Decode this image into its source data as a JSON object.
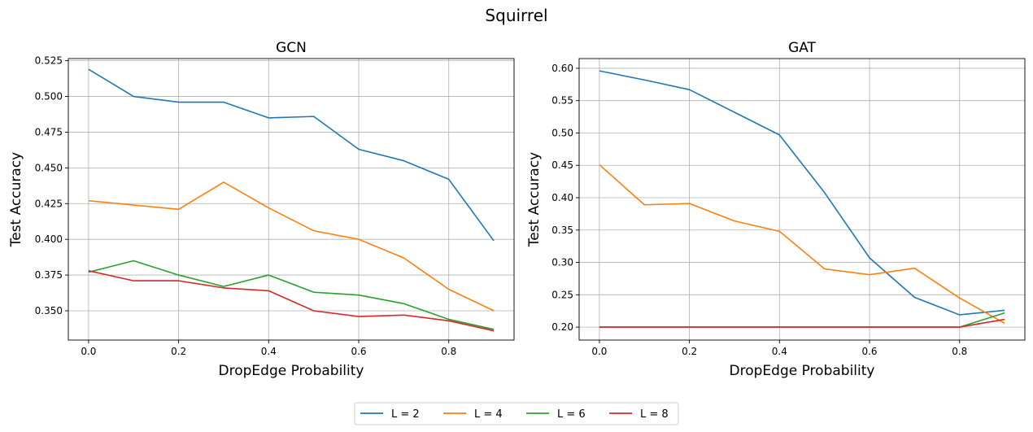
{
  "figure": {
    "suptitle": "Squirrel"
  },
  "chart_data": [
    {
      "type": "line",
      "title": "GCN",
      "xlabel": "DropEdge Probability",
      "ylabel": "Test Accuracy",
      "xlim": [
        -0.045,
        0.945
      ],
      "ylim": [
        0.3295,
        0.5265
      ],
      "xticks": [
        0.0,
        0.2,
        0.4,
        0.6,
        0.8
      ],
      "xtick_labels": [
        "0.0",
        "0.2",
        "0.4",
        "0.6",
        "0.8"
      ],
      "yticks": [
        0.35,
        0.375,
        0.4,
        0.425,
        0.45,
        0.475,
        0.5,
        0.525
      ],
      "ytick_labels": [
        "0.350",
        "0.375",
        "0.400",
        "0.425",
        "0.450",
        "0.475",
        "0.500",
        "0.525"
      ],
      "grid": true,
      "x": [
        0.0,
        0.1,
        0.2,
        0.3,
        0.4,
        0.5,
        0.6,
        0.7,
        0.8,
        0.9
      ],
      "series": [
        {
          "name": "L = 2",
          "color": "#1f77b4",
          "values": [
            0.519,
            0.5,
            0.496,
            0.496,
            0.485,
            0.486,
            0.463,
            0.455,
            0.442,
            0.399
          ]
        },
        {
          "name": "L = 4",
          "color": "#ff7f0e",
          "values": [
            0.427,
            0.424,
            0.421,
            0.44,
            0.422,
            0.406,
            0.4,
            0.387,
            0.365,
            0.35
          ]
        },
        {
          "name": "L = 6",
          "color": "#2ca02c",
          "values": [
            0.377,
            0.385,
            0.375,
            0.367,
            0.375,
            0.363,
            0.361,
            0.355,
            0.344,
            0.337
          ]
        },
        {
          "name": "L = 8",
          "color": "#d62728",
          "values": [
            0.378,
            0.371,
            0.371,
            0.366,
            0.364,
            0.35,
            0.346,
            0.347,
            0.343,
            0.336
          ]
        }
      ]
    },
    {
      "type": "line",
      "title": "GAT",
      "xlabel": "DropEdge Probability",
      "ylabel": "Test Accuracy",
      "xlim": [
        -0.045,
        0.945
      ],
      "ylim": [
        0.18,
        0.615
      ],
      "xticks": [
        0.0,
        0.2,
        0.4,
        0.6,
        0.8
      ],
      "xtick_labels": [
        "0.0",
        "0.2",
        "0.4",
        "0.6",
        "0.8"
      ],
      "yticks": [
        0.2,
        0.25,
        0.3,
        0.35,
        0.4,
        0.45,
        0.5,
        0.55,
        0.6
      ],
      "ytick_labels": [
        "0.20",
        "0.25",
        "0.30",
        "0.35",
        "0.40",
        "0.45",
        "0.50",
        "0.55",
        "0.60"
      ],
      "grid": true,
      "x": [
        0.0,
        0.1,
        0.2,
        0.3,
        0.4,
        0.5,
        0.6,
        0.7,
        0.8,
        0.9
      ],
      "series": [
        {
          "name": "L = 2",
          "color": "#1f77b4",
          "values": [
            0.596,
            0.582,
            0.567,
            0.532,
            0.497,
            0.408,
            0.307,
            0.246,
            0.219,
            0.226
          ]
        },
        {
          "name": "L = 4",
          "color": "#ff7f0e",
          "values": [
            0.451,
            0.389,
            0.391,
            0.364,
            0.348,
            0.29,
            0.281,
            0.291,
            0.245,
            0.206
          ]
        },
        {
          "name": "L = 6",
          "color": "#2ca02c",
          "values": [
            0.2,
            0.2,
            0.2,
            0.2,
            0.2,
            0.2,
            0.2,
            0.2,
            0.2,
            0.222
          ]
        },
        {
          "name": "L = 8",
          "color": "#d62728",
          "values": [
            0.2,
            0.2,
            0.2,
            0.2,
            0.2,
            0.2,
            0.2,
            0.2,
            0.2,
            0.212
          ]
        }
      ]
    }
  ],
  "legend": {
    "placement": "bottom-center",
    "entries": [
      {
        "label": "L = 2",
        "color": "#1f77b4"
      },
      {
        "label": "L = 4",
        "color": "#ff7f0e"
      },
      {
        "label": "L = 6",
        "color": "#2ca02c"
      },
      {
        "label": "L = 8",
        "color": "#d62728"
      }
    ]
  }
}
